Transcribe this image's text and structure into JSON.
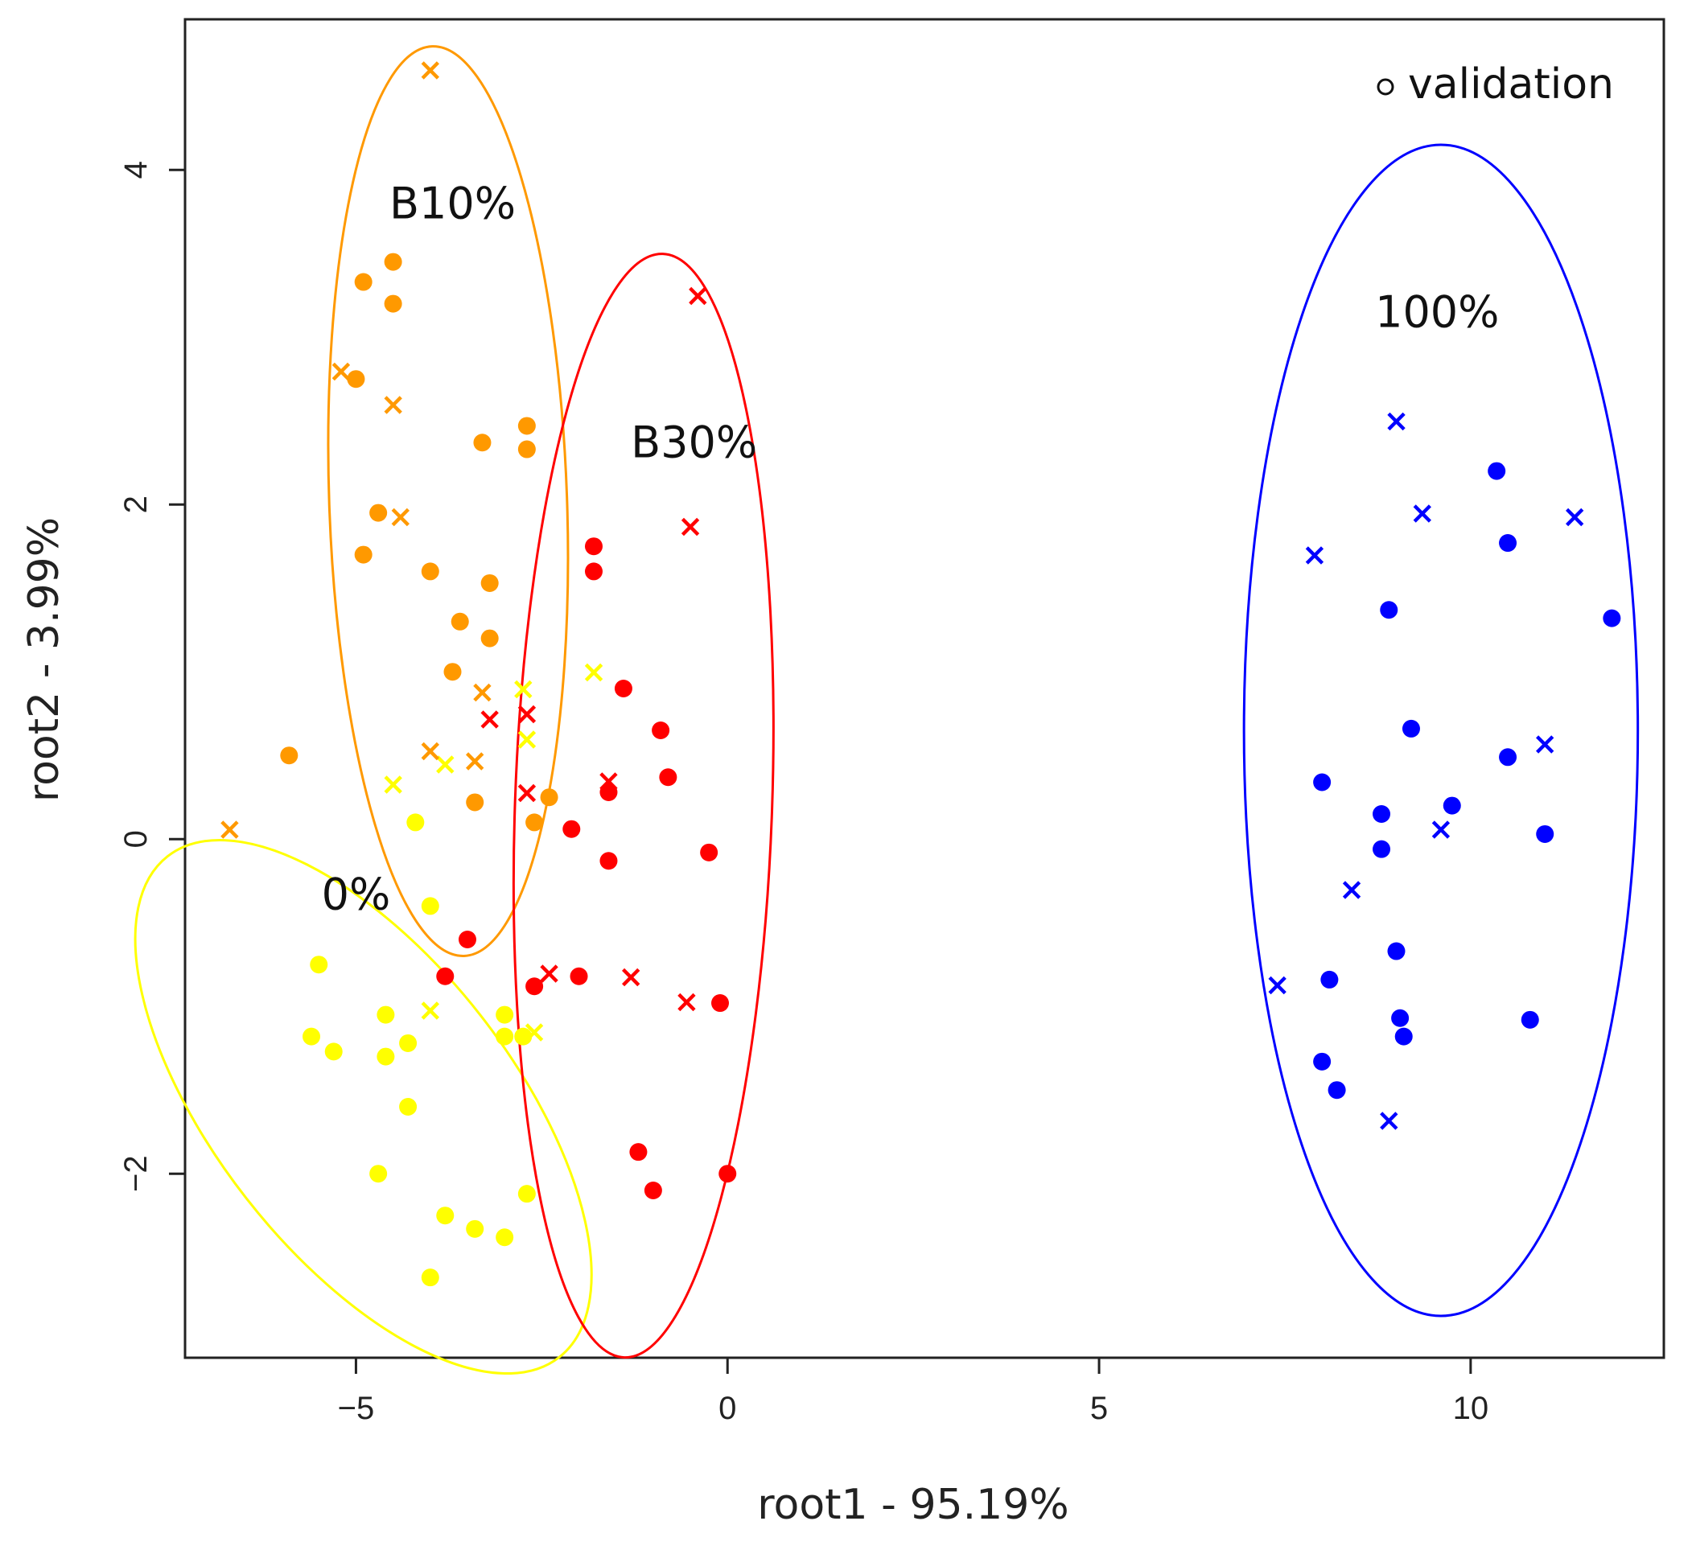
{
  "chart_data": {
    "type": "scatter",
    "xlabel": "root1 - 95.19%",
    "ylabel": "root2 - 3.99%",
    "xlim": [
      -7.3,
      12.6
    ],
    "ylim": [
      -3.1,
      4.9
    ],
    "xticks": [
      -5,
      0,
      5,
      10
    ],
    "yticks": [
      -2,
      0,
      2,
      4
    ],
    "xtick_labels": [
      "−5",
      "0",
      "5",
      "10"
    ],
    "ytick_labels": [
      "−2",
      "0",
      "2",
      "4"
    ],
    "grid": false,
    "legend": {
      "label": "validation",
      "marker": "open-circle",
      "position": "top-right"
    },
    "colors": {
      "0%": "#ffff00",
      "B10%": "#ff9900",
      "B30%": "#ff0000",
      "100%": "#0000ff"
    },
    "groups": [
      {
        "label": "0%",
        "color": "#ffff00",
        "label_pos": [
          -5.0,
          -0.33
        ],
        "ellipse": {
          "cx": -4.9,
          "cy": -1.6,
          "rx": 2.0,
          "ry": 1.9,
          "angle": -38
        },
        "points": [
          [
            -4.2,
            0.1
          ],
          [
            -4.0,
            -0.4
          ],
          [
            -5.5,
            -0.75
          ],
          [
            -4.6,
            -1.05
          ],
          [
            -3.0,
            -1.05
          ],
          [
            -5.6,
            -1.18
          ],
          [
            -3.0,
            -1.18
          ],
          [
            -2.75,
            -1.18
          ],
          [
            -4.3,
            -1.22
          ],
          [
            -5.3,
            -1.27
          ],
          [
            -4.6,
            -1.3
          ],
          [
            -4.3,
            -1.6
          ],
          [
            -4.7,
            -2.0
          ],
          [
            -2.7,
            -2.12
          ],
          [
            -3.8,
            -2.25
          ],
          [
            -3.4,
            -2.33
          ],
          [
            -3.0,
            -2.38
          ],
          [
            -4.0,
            -2.62
          ]
        ],
        "crosses": [
          [
            -2.75,
            0.9
          ],
          [
            -2.7,
            0.6
          ],
          [
            -3.8,
            0.45
          ],
          [
            -4.5,
            0.33
          ],
          [
            -1.8,
            1.0
          ],
          [
            -4.0,
            -1.02
          ],
          [
            -2.6,
            -1.15
          ]
        ]
      },
      {
        "label": "B10%",
        "color": "#ff9900",
        "label_pos": [
          -3.7,
          3.8
        ],
        "ellipse": {
          "cx": -3.76,
          "cy": 2.02,
          "rx": 1.6,
          "ry": 2.72,
          "angle": -2
        },
        "points": [
          [
            -4.5,
            3.45
          ],
          [
            -4.9,
            3.33
          ],
          [
            -4.5,
            3.2
          ],
          [
            -5.0,
            2.75
          ],
          [
            -2.7,
            2.47
          ],
          [
            -3.3,
            2.37
          ],
          [
            -2.7,
            2.33
          ],
          [
            -4.7,
            1.95
          ],
          [
            -4.9,
            1.7
          ],
          [
            -4.0,
            1.6
          ],
          [
            -3.2,
            1.53
          ],
          [
            -3.6,
            1.3
          ],
          [
            -3.2,
            1.2
          ],
          [
            -3.7,
            1.0
          ],
          [
            -5.9,
            0.5
          ],
          [
            -3.4,
            0.22
          ],
          [
            -2.4,
            0.25
          ],
          [
            -2.6,
            0.1
          ]
        ],
        "crosses": [
          [
            -4.0,
            4.6
          ],
          [
            -5.2,
            2.8
          ],
          [
            -4.5,
            2.6
          ],
          [
            -4.4,
            1.93
          ],
          [
            -3.3,
            0.88
          ],
          [
            -3.4,
            0.47
          ],
          [
            -4.0,
            0.53
          ],
          [
            -6.7,
            0.06
          ]
        ]
      },
      {
        "label": "B30%",
        "color": "#ff0000",
        "label_pos": [
          -0.45,
          2.37
        ],
        "ellipse": {
          "cx": -1.13,
          "cy": 0.2,
          "rx": 1.73,
          "ry": 3.3,
          "angle": 2
        },
        "points": [
          [
            -1.8,
            1.75
          ],
          [
            -1.8,
            1.6
          ],
          [
            -1.4,
            0.9
          ],
          [
            -0.9,
            0.65
          ],
          [
            -0.8,
            0.37
          ],
          [
            -1.6,
            0.28
          ],
          [
            -2.1,
            0.06
          ],
          [
            -0.25,
            -0.08
          ],
          [
            -1.6,
            -0.13
          ],
          [
            -3.5,
            -0.6
          ],
          [
            -3.8,
            -0.82
          ],
          [
            -2.0,
            -0.82
          ],
          [
            -2.6,
            -0.88
          ],
          [
            -0.1,
            -0.98
          ],
          [
            -1.2,
            -1.87
          ],
          [
            -1.0,
            -2.1
          ],
          [
            0.0,
            -2.0
          ]
        ],
        "crosses": [
          [
            -0.4,
            3.25
          ],
          [
            -0.5,
            1.87
          ],
          [
            -3.2,
            0.72
          ],
          [
            -2.7,
            0.75
          ],
          [
            -2.7,
            0.28
          ],
          [
            -1.6,
            0.35
          ],
          [
            -2.4,
            -0.8
          ],
          [
            -1.3,
            -0.82
          ],
          [
            -0.55,
            -0.97
          ]
        ]
      },
      {
        "label": "100%",
        "color": "#0000ff",
        "label_pos": [
          9.55,
          3.15
        ],
        "ellipse": {
          "cx": 9.6,
          "cy": 0.65,
          "rx": 2.65,
          "ry": 3.5,
          "angle": 0
        },
        "points": [
          [
            10.35,
            2.2
          ],
          [
            10.5,
            1.77
          ],
          [
            8.9,
            1.37
          ],
          [
            11.9,
            1.32
          ],
          [
            9.2,
            0.66
          ],
          [
            10.5,
            0.49
          ],
          [
            8.0,
            0.34
          ],
          [
            9.75,
            0.2
          ],
          [
            8.8,
            0.15
          ],
          [
            8.8,
            -0.06
          ],
          [
            11.0,
            0.03
          ],
          [
            9.0,
            -0.67
          ],
          [
            8.1,
            -0.84
          ],
          [
            9.05,
            -1.07
          ],
          [
            9.1,
            -1.18
          ],
          [
            10.8,
            -1.08
          ],
          [
            8.0,
            -1.33
          ],
          [
            8.2,
            -1.5
          ]
        ],
        "crosses": [
          [
            9.0,
            2.5
          ],
          [
            9.35,
            1.95
          ],
          [
            11.4,
            1.93
          ],
          [
            7.9,
            1.7
          ],
          [
            11.0,
            0.57
          ],
          [
            9.6,
            0.06
          ],
          [
            8.4,
            -0.3
          ],
          [
            7.4,
            -0.87
          ],
          [
            8.9,
            -1.68
          ]
        ]
      }
    ]
  }
}
